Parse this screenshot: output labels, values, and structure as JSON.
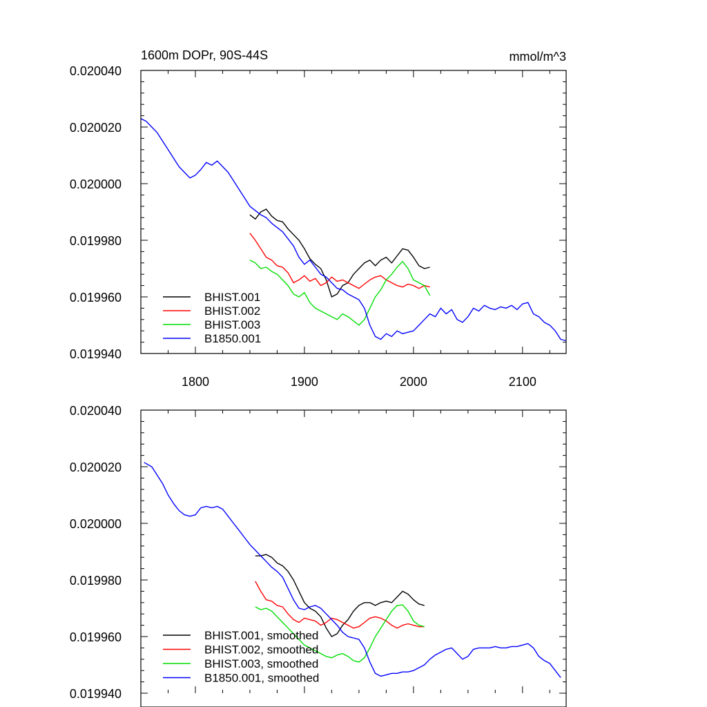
{
  "chart_data": [
    {
      "type": "line",
      "title": "1600m DOPr, 90S-44S",
      "units": "mmol/m^3",
      "xlim": [
        1750,
        2140
      ],
      "ylim": [
        0.01994,
        0.02004
      ],
      "xticks": [
        1800,
        1900,
        2000,
        2100
      ],
      "xtick_labels": [
        "1800",
        "1900",
        "2000",
        "2100"
      ],
      "yticks": [
        0.01994,
        0.01996,
        0.01998,
        0.02,
        0.02002,
        0.02004
      ],
      "ytick_labels": [
        "0.019940",
        "0.019960",
        "0.019980",
        "0.020000",
        "0.020020",
        "0.020040"
      ],
      "legend_position": "bottom-left",
      "series": [
        {
          "name": "BHIST.001",
          "color": "#000000",
          "x": [
            1850,
            1855,
            1860,
            1865,
            1870,
            1875,
            1880,
            1885,
            1890,
            1895,
            1900,
            1905,
            1910,
            1915,
            1920,
            1925,
            1930,
            1935,
            1940,
            1945,
            1950,
            1955,
            1960,
            1965,
            1970,
            1975,
            1980,
            1985,
            1990,
            1995,
            2000,
            2005,
            2010,
            2015
          ],
          "y": [
            0.019989,
            0.0199875,
            0.01999,
            0.019991,
            0.0199885,
            0.019987,
            0.0199865,
            0.019984,
            0.019982,
            0.01998,
            0.019977,
            0.0199735,
            0.0199715,
            0.01997,
            0.019966,
            0.01996,
            0.019961,
            0.019964,
            0.019965,
            0.019968,
            0.01997,
            0.019972,
            0.019973,
            0.019971,
            0.019973,
            0.019974,
            0.019972,
            0.0199745,
            0.019977,
            0.0199765,
            0.019974,
            0.019971,
            0.01997,
            0.0199705
          ]
        },
        {
          "name": "BHIST.002",
          "color": "#ff0000",
          "x": [
            1850,
            1855,
            1860,
            1865,
            1870,
            1875,
            1880,
            1885,
            1890,
            1895,
            1900,
            1905,
            1910,
            1915,
            1920,
            1925,
            1930,
            1935,
            1940,
            1945,
            1950,
            1955,
            1960,
            1965,
            1970,
            1975,
            1980,
            1985,
            1990,
            1995,
            2000,
            2005,
            2010,
            2015
          ],
          "y": [
            0.0199825,
            0.01998,
            0.019977,
            0.019974,
            0.019973,
            0.019971,
            0.0199705,
            0.0199685,
            0.019965,
            0.019966,
            0.0199675,
            0.0199655,
            0.0199665,
            0.019964,
            0.019965,
            0.019967,
            0.0199655,
            0.019966,
            0.019965,
            0.019964,
            0.019963,
            0.0199645,
            0.019966,
            0.019967,
            0.0199675,
            0.019966,
            0.019965,
            0.019964,
            0.0199635,
            0.0199645,
            0.019964,
            0.019963,
            0.019964,
            0.0199635
          ]
        },
        {
          "name": "BHIST.003",
          "color": "#00dd00",
          "x": [
            1850,
            1855,
            1860,
            1865,
            1870,
            1875,
            1880,
            1885,
            1890,
            1895,
            1900,
            1905,
            1910,
            1915,
            1920,
            1925,
            1930,
            1935,
            1940,
            1945,
            1950,
            1955,
            1960,
            1965,
            1970,
            1975,
            1980,
            1985,
            1990,
            1995,
            2000,
            2005,
            2010,
            2015
          ],
          "y": [
            0.019973,
            0.019972,
            0.01997,
            0.0199705,
            0.019969,
            0.019968,
            0.019966,
            0.019964,
            0.019961,
            0.01996,
            0.0199615,
            0.019958,
            0.019956,
            0.019955,
            0.019954,
            0.019953,
            0.019952,
            0.019954,
            0.019953,
            0.0199515,
            0.01995,
            0.019952,
            0.019956,
            0.01996,
            0.0199625,
            0.019966,
            0.019968,
            0.0199705,
            0.0199725,
            0.01997,
            0.019966,
            0.019965,
            0.019964,
            0.0199605
          ]
        },
        {
          "name": "B1850.001",
          "color": "#0000ff",
          "x": [
            1750,
            1755,
            1760,
            1765,
            1770,
            1775,
            1780,
            1785,
            1790,
            1795,
            1800,
            1805,
            1810,
            1815,
            1820,
            1825,
            1830,
            1835,
            1840,
            1845,
            1850,
            1855,
            1860,
            1865,
            1870,
            1875,
            1880,
            1885,
            1890,
            1895,
            1900,
            1905,
            1910,
            1915,
            1920,
            1925,
            1930,
            1935,
            1940,
            1945,
            1950,
            1955,
            1960,
            1965,
            1970,
            1975,
            1980,
            1985,
            1990,
            1995,
            2000,
            2005,
            2010,
            2015,
            2020,
            2025,
            2030,
            2035,
            2040,
            2045,
            2050,
            2055,
            2060,
            2065,
            2070,
            2075,
            2080,
            2085,
            2090,
            2095,
            2100,
            2105,
            2110,
            2115,
            2120,
            2125,
            2130,
            2135,
            2140
          ],
          "y": [
            0.020023,
            0.020022,
            0.02002,
            0.020018,
            0.020015,
            0.020012,
            0.020009,
            0.020006,
            0.020004,
            0.020002,
            0.020003,
            0.020005,
            0.0200075,
            0.0200065,
            0.020008,
            0.020006,
            0.020004,
            0.020001,
            0.019998,
            0.019995,
            0.019992,
            0.0199905,
            0.019989,
            0.019988,
            0.019986,
            0.0199845,
            0.019983,
            0.0199805,
            0.019978,
            0.019974,
            0.0199715,
            0.019973,
            0.0199705,
            0.019968,
            0.019967,
            0.019965,
            0.019963,
            0.0199625,
            0.019961,
            0.01996,
            0.019959,
            0.019956,
            0.01995,
            0.019946,
            0.019945,
            0.019947,
            0.019946,
            0.019948,
            0.019947,
            0.0199475,
            0.019948,
            0.01995,
            0.019952,
            0.019954,
            0.019953,
            0.019956,
            0.019954,
            0.0199555,
            0.019952,
            0.019951,
            0.019953,
            0.019956,
            0.019955,
            0.019957,
            0.019956,
            0.0199555,
            0.0199565,
            0.019956,
            0.019957,
            0.0199555,
            0.0199575,
            0.019958,
            0.019954,
            0.019953,
            0.019951,
            0.01995,
            0.019948,
            0.019945,
            0.0199445
          ]
        }
      ]
    },
    {
      "type": "line",
      "title": "",
      "xlim": [
        1750,
        2140
      ],
      "ylim": [
        0.01994,
        0.02004
      ],
      "xticks": [
        1800,
        1900,
        2000,
        2100
      ],
      "xtick_labels": [],
      "yticks": [
        0.01994,
        0.01996,
        0.01998,
        0.02,
        0.02002,
        0.02004
      ],
      "ytick_labels": [
        "0.019940",
        "0.019960",
        "0.019980",
        "0.020000",
        "0.020020",
        "0.020040"
      ],
      "legend_position": "bottom-left",
      "series": [
        {
          "name": "BHIST.001, smoothed",
          "color": "#000000",
          "x": [
            1855,
            1860,
            1865,
            1870,
            1875,
            1880,
            1885,
            1890,
            1895,
            1900,
            1905,
            1910,
            1915,
            1920,
            1925,
            1930,
            1935,
            1940,
            1945,
            1950,
            1955,
            1960,
            1965,
            1970,
            1975,
            1980,
            1985,
            1990,
            1995,
            2000,
            2005,
            2010
          ],
          "y": [
            0.0199885,
            0.0199885,
            0.019989,
            0.019988,
            0.019986,
            0.019985,
            0.019983,
            0.01998,
            0.019976,
            0.019972,
            0.01997,
            0.019969,
            0.019967,
            0.019963,
            0.01996,
            0.019961,
            0.019964,
            0.019966,
            0.019969,
            0.019971,
            0.019972,
            0.019972,
            0.019971,
            0.019972,
            0.0199725,
            0.019972,
            0.019974,
            0.019976,
            0.019975,
            0.019973,
            0.0199715,
            0.019971
          ]
        },
        {
          "name": "BHIST.002, smoothed",
          "color": "#ff0000",
          "x": [
            1855,
            1860,
            1865,
            1870,
            1875,
            1880,
            1885,
            1890,
            1895,
            1900,
            1905,
            1910,
            1915,
            1920,
            1925,
            1930,
            1935,
            1940,
            1945,
            1950,
            1955,
            1960,
            1965,
            1970,
            1975,
            1980,
            1985,
            1990,
            1995,
            2000,
            2005,
            2010
          ],
          "y": [
            0.0199795,
            0.019976,
            0.019973,
            0.0199725,
            0.019971,
            0.0199705,
            0.019968,
            0.019966,
            0.019965,
            0.0199665,
            0.019966,
            0.0199655,
            0.019964,
            0.019965,
            0.0199665,
            0.019966,
            0.019965,
            0.019964,
            0.019963,
            0.0199635,
            0.019965,
            0.0199665,
            0.019967,
            0.0199665,
            0.0199655,
            0.019964,
            0.019963,
            0.019964,
            0.0199645,
            0.019964,
            0.0199635,
            0.0199635
          ]
        },
        {
          "name": "BHIST.003, smoothed",
          "color": "#00dd00",
          "x": [
            1855,
            1860,
            1865,
            1870,
            1875,
            1880,
            1885,
            1890,
            1895,
            1900,
            1905,
            1910,
            1915,
            1920,
            1925,
            1930,
            1935,
            1940,
            1945,
            1950,
            1955,
            1960,
            1965,
            1970,
            1975,
            1980,
            1985,
            1990,
            1995,
            2000,
            2005,
            2010
          ],
          "y": [
            0.0199705,
            0.0199695,
            0.01997,
            0.019969,
            0.019967,
            0.019965,
            0.019963,
            0.019961,
            0.019959,
            0.019957,
            0.019956,
            0.019955,
            0.019954,
            0.019953,
            0.0199525,
            0.0199535,
            0.019954,
            0.019953,
            0.0199515,
            0.019951,
            0.0199525,
            0.019956,
            0.01996,
            0.019963,
            0.019966,
            0.019969,
            0.019971,
            0.0199712,
            0.019969,
            0.0199655,
            0.019964,
            0.0199635
          ]
        },
        {
          "name": "B1850.001, smoothed",
          "color": "#0000ff",
          "x": [
            1753,
            1760,
            1765,
            1770,
            1775,
            1780,
            1785,
            1790,
            1795,
            1800,
            1805,
            1810,
            1815,
            1820,
            1825,
            1830,
            1835,
            1840,
            1845,
            1850,
            1855,
            1860,
            1865,
            1870,
            1875,
            1880,
            1885,
            1890,
            1895,
            1900,
            1905,
            1910,
            1915,
            1920,
            1925,
            1930,
            1935,
            1940,
            1945,
            1950,
            1955,
            1960,
            1965,
            1970,
            1975,
            1980,
            1985,
            1990,
            1995,
            2000,
            2005,
            2010,
            2015,
            2020,
            2025,
            2030,
            2035,
            2040,
            2045,
            2050,
            2055,
            2060,
            2065,
            2070,
            2075,
            2080,
            2085,
            2090,
            2095,
            2100,
            2105,
            2110,
            2115,
            2120,
            2125,
            2130,
            2135
          ],
          "y": [
            0.0200215,
            0.02002,
            0.020017,
            0.020014,
            0.02001,
            0.020007,
            0.0200045,
            0.020003,
            0.0200025,
            0.020003,
            0.0200055,
            0.020006,
            0.0200055,
            0.020006,
            0.020005,
            0.0200025,
            0.02,
            0.0199975,
            0.019995,
            0.0199925,
            0.0199905,
            0.0199885,
            0.0199865,
            0.0199845,
            0.019983,
            0.019981,
            0.019977,
            0.019973,
            0.01997,
            0.0199695,
            0.0199705,
            0.019971,
            0.01997,
            0.019968,
            0.019966,
            0.019964,
            0.0199615,
            0.01996,
            0.0199595,
            0.019959,
            0.019956,
            0.019951,
            0.019947,
            0.019946,
            0.0199465,
            0.019947,
            0.019947,
            0.0199475,
            0.0199475,
            0.019948,
            0.019949,
            0.01995,
            0.019952,
            0.0199535,
            0.0199545,
            0.0199555,
            0.019956,
            0.019954,
            0.019952,
            0.019953,
            0.0199555,
            0.019956,
            0.019956,
            0.019956,
            0.0199565,
            0.019956,
            0.019956,
            0.0199565,
            0.0199565,
            0.019957,
            0.0199575,
            0.019956,
            0.019953,
            0.0199515,
            0.0199505,
            0.019948,
            0.0199455
          ]
        }
      ]
    }
  ]
}
